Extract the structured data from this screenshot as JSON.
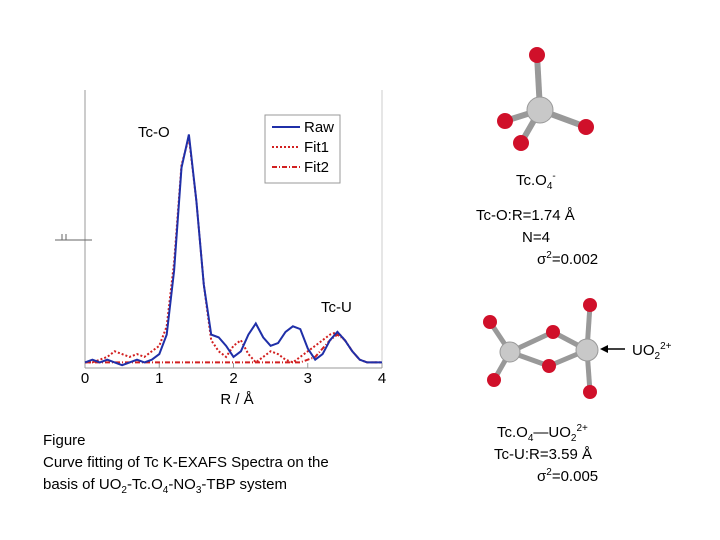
{
  "chart_data": {
    "type": "line",
    "annotations": [
      "Tc-O",
      "Tc-U"
    ],
    "xlabel": "R / Å",
    "x": [
      0,
      0.1,
      0.2,
      0.3,
      0.4,
      0.5,
      0.6,
      0.7,
      0.8,
      0.9,
      1.0,
      1.1,
      1.2,
      1.3,
      1.4,
      1.5,
      1.6,
      1.7,
      1.8,
      1.9,
      2.0,
      2.1,
      2.2,
      2.3,
      2.4,
      2.5,
      2.6,
      2.7,
      2.8,
      2.9,
      3.0,
      3.1,
      3.2,
      3.3,
      3.4,
      3.5,
      3.6,
      3.7,
      3.8,
      3.9,
      4.0
    ],
    "series": [
      {
        "name": "Raw",
        "color": "#1f2fa8",
        "dash": "solid",
        "values": [
          0.02,
          0.03,
          0.02,
          0.03,
          0.02,
          0.01,
          0.02,
          0.03,
          0.02,
          0.03,
          0.05,
          0.12,
          0.35,
          0.72,
          0.84,
          0.6,
          0.3,
          0.12,
          0.11,
          0.08,
          0.04,
          0.06,
          0.12,
          0.16,
          0.11,
          0.08,
          0.09,
          0.13,
          0.15,
          0.14,
          0.07,
          0.03,
          0.05,
          0.1,
          0.13,
          0.1,
          0.06,
          0.03,
          0.02,
          0.02,
          0.02
        ]
      },
      {
        "name": "Fit1",
        "color": "#d22020",
        "dash": "dot",
        "values": [
          0.02,
          0.02,
          0.03,
          0.04,
          0.06,
          0.05,
          0.04,
          0.05,
          0.04,
          0.06,
          0.08,
          0.15,
          0.38,
          0.73,
          0.83,
          0.6,
          0.3,
          0.1,
          0.06,
          0.04,
          0.08,
          0.1,
          0.05,
          0.02,
          0.04,
          0.06,
          0.05,
          0.03,
          0.02,
          0.04,
          0.06,
          0.08,
          0.1,
          0.12,
          0.13,
          0.1,
          0.06,
          0.03,
          0.02,
          0.02,
          0.02
        ]
      },
      {
        "name": "Fit2",
        "color": "#d22020",
        "dash": "dashdot",
        "values": [
          0.02,
          0.02,
          0.02,
          0.02,
          0.02,
          0.02,
          0.02,
          0.02,
          0.02,
          0.02,
          0.02,
          0.02,
          0.02,
          0.02,
          0.02,
          0.02,
          0.02,
          0.02,
          0.02,
          0.02,
          0.02,
          0.02,
          0.02,
          0.02,
          0.02,
          0.02,
          0.02,
          0.02,
          0.02,
          0.02,
          0.03,
          0.04,
          0.07,
          0.1,
          0.12,
          0.1,
          0.06,
          0.03,
          0.02,
          0.02,
          0.02
        ]
      }
    ],
    "xlim": [
      0,
      4
    ],
    "xticks": [
      0,
      1,
      2,
      3,
      4
    ],
    "ylim": [
      0,
      1
    ]
  },
  "slide": {
    "top_molecule": [
      "Tc.O",
      "4",
      "-"
    ],
    "top_r": "Tc-O:R=1.74 Å",
    "top_n": "N=4",
    "top_sigma": [
      "σ",
      "2",
      "=0.002"
    ],
    "arrow_label": [
      "UO",
      "2",
      "2+"
    ],
    "bottom_molecule": [
      "Tc.O",
      "4",
      "—UO",
      "2",
      "2+"
    ],
    "bottom_r": "Tc-U:R=3.59 Å",
    "bottom_sigma": [
      "σ",
      "2",
      "=0.005"
    ],
    "caption_1": "Figure",
    "caption_2": "Curve fitting of Tc K-EXAFS Spectra on the",
    "caption_3": [
      "basis of UO",
      "2",
      "-Tc.O",
      "4",
      "-NO",
      "3",
      "-TBP system"
    ]
  }
}
